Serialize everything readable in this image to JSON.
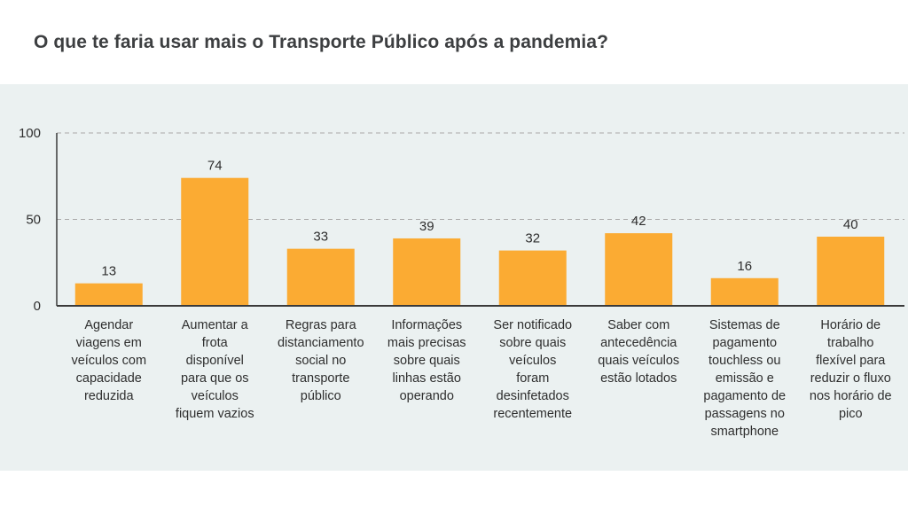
{
  "title": "O que te faria usar mais o Transporte Público após a pandemia?",
  "colors": {
    "bar": "#fbab33",
    "panel_background": "#ebf1f1",
    "gridline": "#a8a8a8",
    "axis": "#3a3a3a"
  },
  "chart_data": {
    "type": "bar",
    "title": "O que te faria usar mais o Transporte Público após a pandemia?",
    "xlabel": "",
    "ylabel": "",
    "ylim": [
      0,
      100
    ],
    "yticks": [
      "0",
      "50",
      "100"
    ],
    "grid": "horizontal dashed at 50 and 100",
    "legend": "none",
    "categories": [
      [
        "Agendar",
        "viagens em",
        "veículos com",
        "capacidade",
        "reduzida"
      ],
      [
        "Aumentar a",
        "frota",
        "disponível",
        "para que os",
        "veículos",
        "fiquem vazios"
      ],
      [
        "Regras para",
        "distanciamento",
        "social no",
        "transporte",
        "público"
      ],
      [
        "Informações",
        "mais precisas",
        "sobre quais",
        "linhas estão",
        "operando"
      ],
      [
        "Ser notificado",
        "sobre quais",
        "veículos",
        "foram",
        "desinfetados",
        "recentemente"
      ],
      [
        "Saber com",
        "antecedência",
        "quais veículos",
        "estão lotados"
      ],
      [
        "Sistemas de",
        "pagamento",
        "touchless ou",
        "emissão e",
        "pagamento de",
        "passagens no",
        "smartphone"
      ],
      [
        "Horário de",
        "trabalho",
        "flexível para",
        "reduzir o fluxo",
        "nos horário de",
        "pico"
      ]
    ],
    "values": [
      13,
      74,
      33,
      39,
      32,
      42,
      16,
      40
    ],
    "data_labels": [
      "13",
      "74",
      "33",
      "39",
      "32",
      "42",
      "16",
      "40"
    ]
  }
}
